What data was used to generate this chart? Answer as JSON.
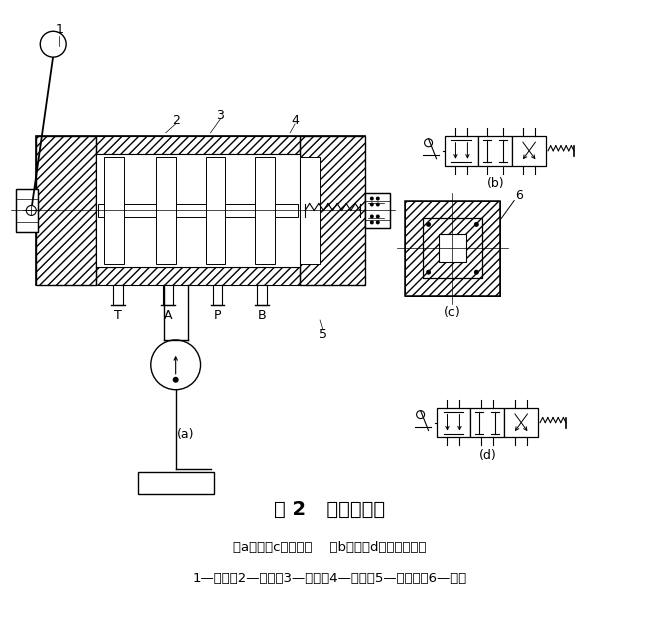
{
  "title": "图 2   手动换向阀",
  "subtitle1": "（a）、（c）结构图    （b）、（d）职能符号图",
  "subtitle2": "1—手柄；2—阀芯；3—阀体；4—弹簧；5—定位套；6—钢球",
  "bg_color": "#ffffff",
  "label_a": "(a)",
  "label_b": "(b)",
  "label_c": "(c)",
  "label_d": "(d)",
  "num_labels": [
    "1",
    "2",
    "3",
    "4",
    "5",
    "6"
  ],
  "port_labels": [
    "T",
    "A",
    "P",
    "B"
  ]
}
